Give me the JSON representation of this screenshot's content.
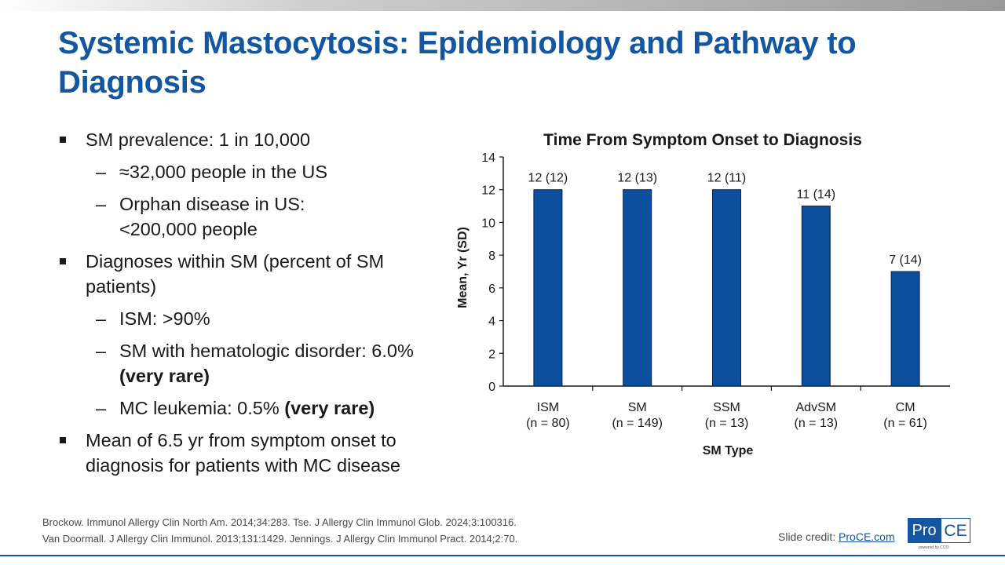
{
  "slide": {
    "title": "Systemic Mastocytosis: Epidemiology and Pathway to Diagnosis"
  },
  "bullets": [
    {
      "text": "SM prevalence: 1 in 10,000"
    },
    {
      "dash": "–",
      "text": "≈32,000 people in the US"
    },
    {
      "dash": "–",
      "text": "Orphan disease in US: <200,000 people"
    },
    {
      "text": "Diagnoses within SM (percent of SM patients)"
    },
    {
      "dash": "–",
      "text": "ISM: >90%"
    },
    {
      "dash": "–",
      "text": "SM with hematologic disorder: 6.0%",
      "emphasis": "(very rare)"
    },
    {
      "dash": "–",
      "text": "MC leukemia: 0.5%",
      "emphasis": "(very rare)"
    },
    {
      "text": "Mean of 6.5 yr from symptom onset to diagnosis for patients with MC disease"
    }
  ],
  "citations": {
    "line1": "Brockow. Immunol Allergy Clin North Am. 2014;34:283. Tse. J Allergy Clin Immunol Glob. 2024;3:100316.",
    "line2": "Van Doormall. J Allergy Clin Immunol. 2013;131:1429. Jennings. J Allergy Clin Immunol Pract. 2014;2:70."
  },
  "credit": {
    "label": "Slide credit:",
    "link": "ProCE.com"
  },
  "logo": {
    "pro": "Pro",
    "ce": "CE",
    "sub": "powered by CCO"
  },
  "colors": {
    "title": "#1457a0",
    "bar": "#0b4f9e",
    "bar_outline": "#0a1f3d"
  },
  "chart_data": {
    "type": "bar",
    "title": "Time From Symptom Onset to Diagnosis",
    "xlabel": "SM Type",
    "ylabel": "Mean, Yr (SD)",
    "ylim": [
      0,
      14
    ],
    "yticks": [
      0,
      2,
      4,
      6,
      8,
      10,
      12,
      14
    ],
    "grid": false,
    "categories": [
      "ISM",
      "SM",
      "SSM",
      "AdvSM",
      "CM"
    ],
    "category_n": [
      "(n = 80)",
      "(n = 149)",
      "(n = 13)",
      "(n = 13)",
      "(n = 61)"
    ],
    "values": [
      12,
      12,
      12,
      11,
      7
    ],
    "data_labels": [
      "12 (12)",
      "12 (13)",
      "12 (11)",
      "11 (14)",
      "7 (14)"
    ]
  }
}
